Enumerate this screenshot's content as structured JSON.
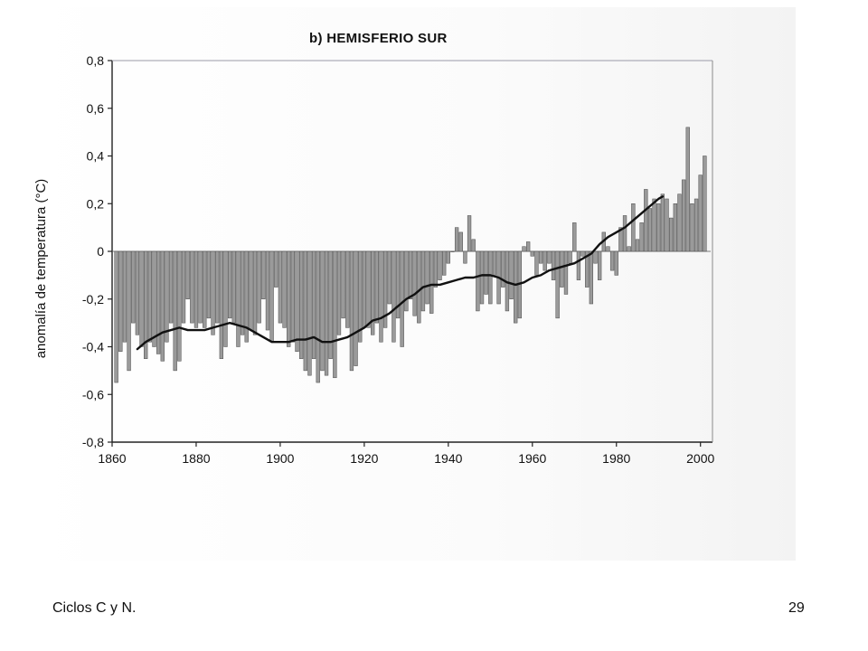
{
  "footer": {
    "left_text": "Ciclos C y N.",
    "page_number": "29"
  },
  "chart_data": {
    "type": "bar",
    "title": "b) HEMISFERIO SUR",
    "ylabel": "anomalía de temperatura (°C)",
    "xlabel": "",
    "xlim": [
      1860,
      2002
    ],
    "ylim": [
      -0.8,
      0.8
    ],
    "x_ticks": [
      1860,
      1880,
      1900,
      1920,
      1940,
      1960,
      1980,
      2000
    ],
    "x_tick_labels": [
      "1860",
      "1880",
      "1900",
      "1920",
      "1940",
      "1960",
      "1980",
      "2000"
    ],
    "y_ticks": [
      0.8,
      0.6,
      0.4,
      0.2,
      0,
      -0.2,
      -0.4,
      -0.6,
      -0.8
    ],
    "y_tick_labels": [
      "0,8",
      "0,6",
      "0,4",
      "0,2",
      "0",
      "-0,2",
      "-0,4",
      "-0,6",
      "-0,8"
    ],
    "grid": false,
    "bar_color": "#9a9a9a",
    "bar_edge_color": "#4a4a4a",
    "line_color": "#111111",
    "series": [
      {
        "kind": "bars",
        "x": [
          1861,
          1862,
          1863,
          1864,
          1865,
          1866,
          1867,
          1868,
          1869,
          1870,
          1871,
          1872,
          1873,
          1874,
          1875,
          1876,
          1877,
          1878,
          1879,
          1880,
          1881,
          1882,
          1883,
          1884,
          1885,
          1886,
          1887,
          1888,
          1889,
          1890,
          1891,
          1892,
          1893,
          1894,
          1895,
          1896,
          1897,
          1898,
          1899,
          1900,
          1901,
          1902,
          1903,
          1904,
          1905,
          1906,
          1907,
          1908,
          1909,
          1910,
          1911,
          1912,
          1913,
          1914,
          1915,
          1916,
          1917,
          1918,
          1919,
          1920,
          1921,
          1922,
          1923,
          1924,
          1925,
          1926,
          1927,
          1928,
          1929,
          1930,
          1931,
          1932,
          1933,
          1934,
          1935,
          1936,
          1937,
          1938,
          1939,
          1940,
          1941,
          1942,
          1943,
          1944,
          1945,
          1946,
          1947,
          1948,
          1949,
          1950,
          1951,
          1952,
          1953,
          1954,
          1955,
          1956,
          1957,
          1958,
          1959,
          1960,
          1961,
          1962,
          1963,
          1964,
          1965,
          1966,
          1967,
          1968,
          1969,
          1970,
          1971,
          1972,
          1973,
          1974,
          1975,
          1976,
          1977,
          1978,
          1979,
          1980,
          1981,
          1982,
          1983,
          1984,
          1985,
          1986,
          1987,
          1988,
          1989,
          1990,
          1991,
          1992,
          1993,
          1994,
          1995,
          1996,
          1997,
          1998,
          1999,
          2000,
          2001
        ],
        "values": [
          -0.55,
          -0.42,
          -0.38,
          -0.5,
          -0.3,
          -0.35,
          -0.4,
          -0.45,
          -0.38,
          -0.4,
          -0.43,
          -0.46,
          -0.38,
          -0.3,
          -0.5,
          -0.46,
          -0.3,
          -0.2,
          -0.3,
          -0.32,
          -0.3,
          -0.32,
          -0.28,
          -0.35,
          -0.3,
          -0.45,
          -0.4,
          -0.28,
          -0.3,
          -0.4,
          -0.35,
          -0.38,
          -0.33,
          -0.35,
          -0.3,
          -0.2,
          -0.33,
          -0.38,
          -0.15,
          -0.3,
          -0.32,
          -0.4,
          -0.38,
          -0.42,
          -0.45,
          -0.5,
          -0.52,
          -0.45,
          -0.55,
          -0.5,
          -0.52,
          -0.45,
          -0.53,
          -0.35,
          -0.28,
          -0.32,
          -0.5,
          -0.48,
          -0.38,
          -0.32,
          -0.32,
          -0.35,
          -0.3,
          -0.38,
          -0.32,
          -0.22,
          -0.38,
          -0.28,
          -0.4,
          -0.25,
          -0.2,
          -0.27,
          -0.3,
          -0.25,
          -0.22,
          -0.26,
          -0.15,
          -0.12,
          -0.1,
          -0.05,
          0.0,
          0.1,
          0.08,
          -0.05,
          0.15,
          0.05,
          -0.25,
          -0.22,
          -0.18,
          -0.22,
          -0.1,
          -0.22,
          -0.15,
          -0.25,
          -0.2,
          -0.3,
          -0.28,
          0.02,
          0.04,
          -0.02,
          -0.1,
          -0.05,
          -0.08,
          -0.05,
          -0.12,
          -0.28,
          -0.15,
          -0.18,
          -0.05,
          0.12,
          -0.12,
          -0.02,
          -0.15,
          -0.22,
          -0.05,
          -0.12,
          0.08,
          0.02,
          -0.08,
          -0.1,
          0.1,
          0.15,
          0.02,
          0.2,
          0.05,
          0.12,
          0.26,
          0.18,
          0.22,
          0.2,
          0.24,
          0.22,
          0.14,
          0.2,
          0.24,
          0.3,
          0.52,
          0.2,
          0.22,
          0.32,
          0.4
        ],
        "label": ""
      },
      {
        "kind": "line",
        "x": [
          1866,
          1868,
          1870,
          1872,
          1874,
          1876,
          1878,
          1880,
          1882,
          1884,
          1886,
          1888,
          1890,
          1892,
          1894,
          1896,
          1898,
          1900,
          1902,
          1904,
          1906,
          1908,
          1910,
          1912,
          1914,
          1916,
          1918,
          1920,
          1922,
          1924,
          1926,
          1928,
          1930,
          1932,
          1934,
          1936,
          1938,
          1940,
          1942,
          1944,
          1946,
          1948,
          1950,
          1952,
          1954,
          1956,
          1958,
          1960,
          1962,
          1964,
          1966,
          1968,
          1970,
          1972,
          1974,
          1976,
          1978,
          1980,
          1982,
          1984,
          1986,
          1988,
          1990,
          1991
        ],
        "values": [
          -0.41,
          -0.38,
          -0.36,
          -0.34,
          -0.33,
          -0.32,
          -0.33,
          -0.33,
          -0.33,
          -0.32,
          -0.31,
          -0.3,
          -0.31,
          -0.32,
          -0.34,
          -0.36,
          -0.38,
          -0.38,
          -0.38,
          -0.37,
          -0.37,
          -0.36,
          -0.38,
          -0.38,
          -0.37,
          -0.36,
          -0.34,
          -0.32,
          -0.29,
          -0.28,
          -0.26,
          -0.23,
          -0.2,
          -0.18,
          -0.15,
          -0.14,
          -0.14,
          -0.13,
          -0.12,
          -0.11,
          -0.11,
          -0.1,
          -0.1,
          -0.11,
          -0.13,
          -0.14,
          -0.13,
          -0.11,
          -0.1,
          -0.08,
          -0.07,
          -0.06,
          -0.05,
          -0.03,
          -0.01,
          0.03,
          0.06,
          0.08,
          0.1,
          0.13,
          0.16,
          0.19,
          0.22,
          0.23
        ],
        "label": ""
      }
    ]
  }
}
